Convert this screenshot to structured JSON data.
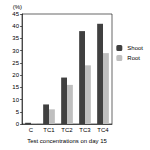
{
  "chart_data": {
    "type": "bar",
    "y_label": "(%)",
    "x_label": "Test concentrations on day 15",
    "categories": [
      "C",
      "TC1",
      "TC2",
      "TC3",
      "TC4"
    ],
    "series": [
      {
        "name": "Shoot",
        "color": "#404040",
        "values": [
          0.5,
          8,
          19,
          38,
          41
        ]
      },
      {
        "name": "Root",
        "color": "#bfbfbf",
        "values": [
          0.3,
          6,
          16,
          24,
          29
        ]
      }
    ],
    "ylim": [
      0,
      45
    ],
    "yticks": [
      0,
      5,
      10,
      15,
      20,
      25,
      30,
      35,
      40,
      45
    ],
    "grid": false,
    "legend": "right"
  }
}
